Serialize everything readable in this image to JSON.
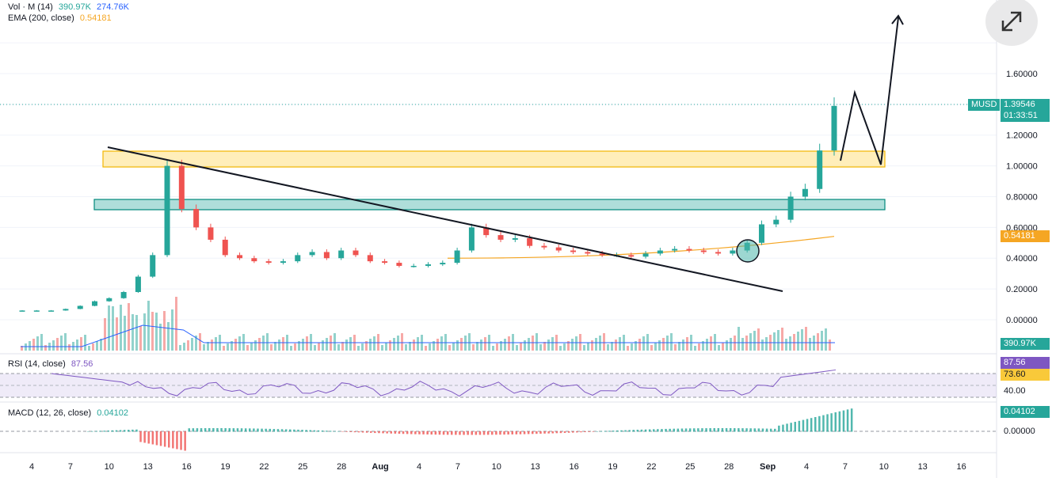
{
  "legend": {
    "vol_label": "Vol · M (14)",
    "vol_value1": "390.97K",
    "vol_value2": "274.76K",
    "ema_label": "EMA (200, close)",
    "ema_value": "0.54181",
    "rsi_label": "RSI (14, close)",
    "rsi_value": "87.56",
    "macd_label": "MACD (12, 26, close)",
    "macd_value": "0.04102"
  },
  "colors": {
    "up": "#26a69a",
    "down": "#ef5350",
    "ema": "#f5a623",
    "resistance_zone": "#ffd54f",
    "support_zone": "#26a69a",
    "volume_ma": "#2962ff",
    "rsi_line": "#7e57c2"
  },
  "price_axis": [
    "1.60000",
    "1.20000",
    "1.00000",
    "0.80000",
    "0.60000",
    "0.40000",
    "0.20000",
    "0.00000"
  ],
  "price_tags": {
    "symbol": "MUSD",
    "price": "1.39546",
    "countdown": "01:33:51",
    "ema": "0.54181",
    "volume": "390.97K",
    "rsi": "87.56",
    "rsi_ma": "73.60",
    "rsi_level": "40.00",
    "macd": "0.04102",
    "macd_zero": "0.00000"
  },
  "time_axis": [
    "4",
    "7",
    "10",
    "13",
    "16",
    "19",
    "22",
    "25",
    "28",
    "Aug",
    "4",
    "7",
    "10",
    "13",
    "16",
    "19",
    "22",
    "25",
    "28",
    "Sep",
    "4",
    "7",
    "10",
    "13",
    "16"
  ],
  "expand_icon": "expand-arrows-icon",
  "chart_data": {
    "type": "candlestick",
    "symbol": "MUSD",
    "ylim": [
      0.0,
      1.7
    ],
    "price_series_close": [
      0.06,
      0.06,
      0.06,
      0.07,
      0.09,
      0.12,
      0.14,
      0.18,
      0.28,
      0.42,
      1.0,
      0.72,
      0.6,
      0.52,
      0.42,
      0.4,
      0.38,
      0.37,
      0.38,
      0.42,
      0.44,
      0.4,
      0.45,
      0.42,
      0.38,
      0.37,
      0.35,
      0.35,
      0.36,
      0.37,
      0.45,
      0.6,
      0.55,
      0.52,
      0.53,
      0.48,
      0.47,
      0.45,
      0.44,
      0.43,
      0.42,
      0.42,
      0.41,
      0.43,
      0.45,
      0.46,
      0.45,
      0.44,
      0.43,
      0.45,
      0.5,
      0.62,
      0.65,
      0.8,
      0.85,
      1.1,
      1.39
    ],
    "ema200_start": 0.4,
    "ema200_end": 0.54181,
    "current_price": 1.39546,
    "zones": [
      {
        "name": "resistance",
        "from": 1.0,
        "to": 1.1
      },
      {
        "name": "support",
        "from": 0.72,
        "to": 0.78
      }
    ],
    "rsi_current": 87.56,
    "rsi_ma": 73.6,
    "macd_current": 0.04102
  }
}
